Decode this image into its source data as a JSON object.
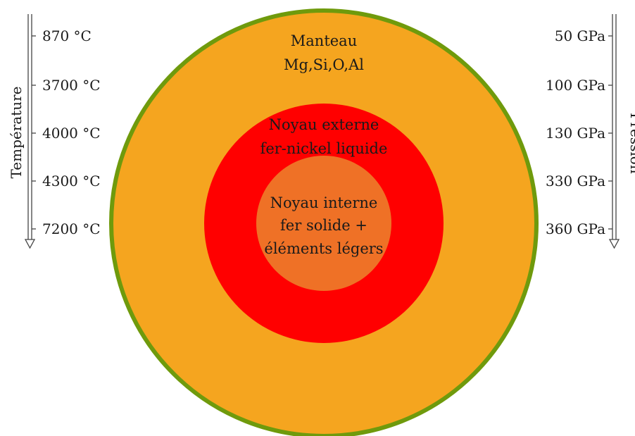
{
  "colors": {
    "crust_border": "#6f9a0c",
    "mantle": "#f5a51f",
    "outer_core": "#ff0000",
    "inner_core": "#ef7126",
    "text": "#1a1a1a",
    "arrow": "#444444"
  },
  "layers": {
    "mantle": {
      "line1": "Manteau",
      "line2": "Mg,Si,O,Al"
    },
    "outer_core": {
      "line1": "Noyau externe",
      "line2": "fer-nickel liquide"
    },
    "inner_core": {
      "line1": "Noyau interne",
      "line2": "fer solide +",
      "line3": "éléments légers"
    }
  },
  "temperature": {
    "title": "Température",
    "labels": [
      "870 °C",
      "3700 °C",
      "4000 °C",
      "4300 °C",
      "7200 °C"
    ]
  },
  "pressure": {
    "title": "Pression",
    "labels": [
      "50 GPa",
      "100 GPa",
      "130 GPa",
      "330 GPa",
      "360 GPa"
    ]
  }
}
